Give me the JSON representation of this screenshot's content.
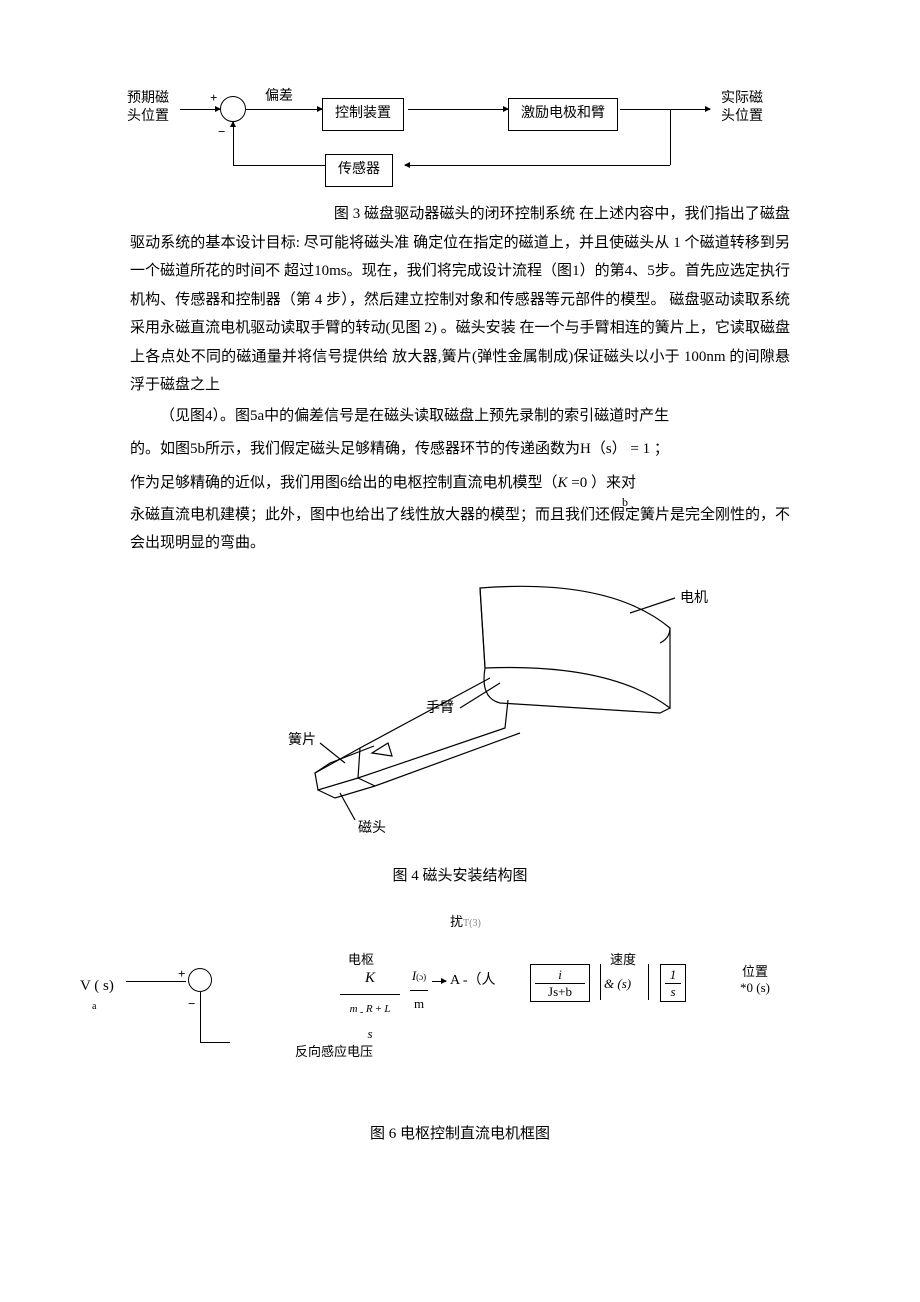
{
  "fig3": {
    "input_label": "预期磁\n头位置",
    "output_label": "实际磁\n头位置",
    "error_label": "偏差",
    "block1": "控制装置",
    "block2": "激励电极和臂",
    "block3": "传感器",
    "plus": "+",
    "minus": "−",
    "caption": "图 3 磁盘驱动器磁头的闭环控制系统"
  },
  "para1": "在上述内容中，我们指出了磁盘驱动系统的基本设计目标: 尽可能将磁头准 确定位在指定的磁道上，并且使磁头从 1 个磁道转移到另一个磁道所花的时间不 超过10ms。现在，我们将完成设计流程（图1）的第4、5步。首先应选定执行 机构、传感器和控制器（第 4 步），然后建立控制对象和传感器等元部件的模型。 磁盘驱动读取系统采用永磁直流电机驱动读取手臂的转动(见图 2) 。磁头安装 在一个与手臂相连的簧片上，它读取磁盘上各点处不同的磁通量并将信号提供给 放大器,簧片(弹性金属制成)保证磁头以小于 100nm 的间隙悬浮于磁盘之上",
  "para2a": "（见图4）。图5a中的偏差信号是在磁头读取磁盘上预先录制的索引磁道时产生",
  "para2b": "的。如图5b所示，我们假定磁头足够精确，传感器环节的传递函数为H（s） = 1 ；",
  "para2c_pre": "作为足够精确的近似，我们用图6给出的电枢控制直流电机模型（",
  "para2c_k": "K",
  "para2c_eq": " =0",
  "para2c_post": " ）来对",
  "para2c_sub": "b",
  "para2d": "永磁直流电机建模；此外，图中也给出了线性放大器的模型；而且我们还假定簧片是完全刚性的，不会出现明显的弯曲。",
  "fig4": {
    "label_motor": "电机",
    "label_arm": "手臂",
    "label_spring": "簧片",
    "label_head": "磁头",
    "caption": "图 4  磁头安装结构图"
  },
  "fig6": {
    "disturbance": "扰",
    "disturbance_sub": "T(3)",
    "input": "V ( s)",
    "input_sub": "a",
    "armature": "电枢",
    "K": "K",
    "denom1": "m",
    "denom1_sub": " - ",
    "R": "R",
    "plus": " + ",
    "L": "L",
    "s": "s",
    "I": "I",
    "I_sub": "(ɔ)",
    "m_frac": "m",
    "arrow_delta": "A -（人",
    "block_i": "i",
    "block_jsb": "Js+b",
    "speed_label": "速度",
    "omega": "&",
    "omega_s": " (s)",
    "one_over_s_1": "1",
    "one_over_s_s": "s",
    "pos_label": "位置",
    "theta": "*0",
    "theta_s": " (s)",
    "feedback": "反向感应电压",
    "sign_plus": "+",
    "sign_minus": "−",
    "caption": "图 6 电枢控制直流电机框图"
  }
}
